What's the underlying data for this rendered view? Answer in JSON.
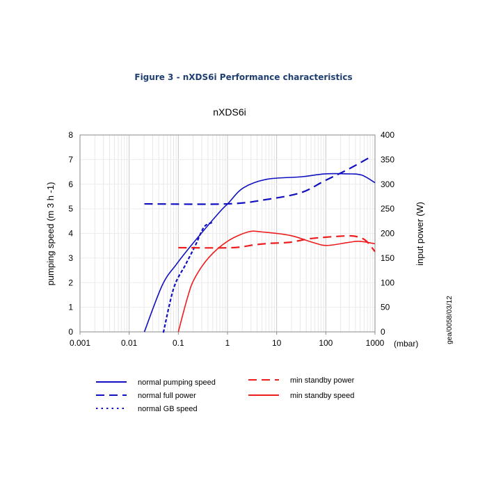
{
  "figure_title": "Figure 3 - nXDS6i Performance characteristics",
  "side_code": "gea/0058/03/12",
  "chart_data": {
    "type": "line",
    "title": "nXDS6i",
    "xlabel": "(mbar)",
    "xscale": "log",
    "xlim": [
      0.001,
      1000
    ],
    "xticks": [
      "0.001",
      "0.01",
      "0.1",
      "1",
      "10",
      "100",
      "1000"
    ],
    "ylabel": "pumping speed (m 3 h -1)",
    "ylim": [
      0,
      8
    ],
    "yticks": [
      "0",
      "1",
      "2",
      "3",
      "4",
      "5",
      "6",
      "7",
      "8"
    ],
    "y2label": "input power (W)",
    "y2lim": [
      0,
      400
    ],
    "y2ticks": [
      "0",
      "50",
      "100",
      "150",
      "200",
      "250",
      "300",
      "350",
      "400"
    ],
    "grid": true,
    "legend_position": "bottom",
    "series": [
      {
        "name": "normal pumping speed",
        "axis": "left",
        "color": "#1010c0",
        "style": "solid",
        "x": [
          0.0204,
          0.047,
          0.091,
          0.195,
          0.65,
          1.05,
          2.1,
          6.3,
          31.6,
          95,
          282,
          537,
          1000
        ],
        "y": [
          0,
          1.89,
          2.74,
          3.58,
          4.81,
          5.24,
          5.85,
          6.2,
          6.3,
          6.42,
          6.42,
          6.37,
          6.06
        ]
      },
      {
        "name": "normal full power",
        "axis": "right",
        "color": "#1010c0",
        "style": "dash",
        "x": [
          0.0204,
          1.0,
          6.3,
          31.6,
          95,
          282,
          832
        ],
        "y": [
          260,
          260,
          269,
          283,
          307,
          330,
          356
        ]
      },
      {
        "name": "normal GB speed",
        "axis": "left",
        "color": "#1010c0",
        "style": "dot",
        "x": [
          0.05,
          0.081,
          0.141,
          0.219,
          0.331,
          0.468
        ],
        "y": [
          0,
          1.79,
          2.74,
          3.49,
          4.25,
          4.43
        ]
      },
      {
        "name": "min standby power",
        "axis": "right",
        "color": "#ee1c1c",
        "style": "dash",
        "x": [
          0.1,
          1.23,
          3.63,
          7.76,
          18.6,
          55,
          282,
          479,
          676,
          1000
        ],
        "y": [
          171,
          171,
          177,
          180,
          182,
          190,
          195,
          192,
          184,
          163
        ]
      },
      {
        "name": "min standby speed",
        "axis": "left",
        "color": "#ee1c1c",
        "style": "solid",
        "x": [
          0.1,
          0.155,
          0.214,
          0.417,
          1.0,
          2.63,
          5.0,
          18.6,
          55,
          105,
          282,
          479,
          1000
        ],
        "y": [
          0,
          1.42,
          2.17,
          3.02,
          3.68,
          4.06,
          4.06,
          3.92,
          3.63,
          3.51,
          3.63,
          3.68,
          3.58
        ]
      }
    ]
  }
}
